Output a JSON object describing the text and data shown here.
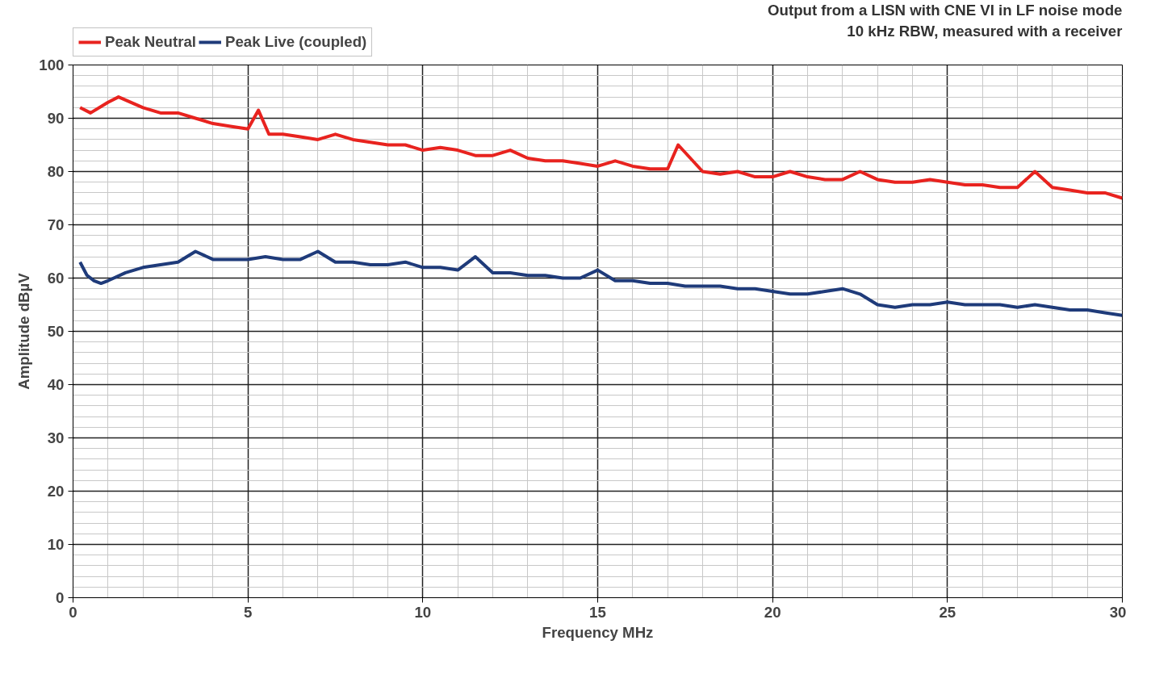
{
  "chart_data": {
    "type": "line",
    "title": "Output from a LISN with CNE VI in LF noise mode",
    "subtitle": "10 kHz RBW, measured with a receiver",
    "xlabel": "Frequency MHz",
    "ylabel": "Amplitude dBµV",
    "xlim": [
      0,
      30
    ],
    "ylim": [
      0,
      100
    ],
    "xticks": [
      0,
      5,
      10,
      15,
      20,
      25,
      30
    ],
    "yticks": [
      0,
      10,
      20,
      30,
      40,
      50,
      60,
      70,
      80,
      90,
      100
    ],
    "grid": true,
    "legend": "top left",
    "marker": "none",
    "line_style": "solid",
    "series": [
      {
        "name": "Peak Neutral",
        "color": "#e8231f",
        "x": [
          0.2,
          0.5,
          1,
          1.3,
          2,
          2.5,
          3,
          3.5,
          4,
          4.5,
          5,
          5.3,
          5.6,
          6,
          6.5,
          7,
          7.5,
          8,
          8.5,
          9,
          9.5,
          10,
          10.5,
          11,
          11.5,
          12,
          12.5,
          13,
          13.5,
          14,
          14.5,
          15,
          15.5,
          16,
          16.5,
          17,
          17.3,
          18,
          18.5,
          19,
          19.5,
          20,
          20.5,
          21,
          21.5,
          22,
          22.5,
          23,
          23.5,
          24,
          24.5,
          25,
          25.5,
          26,
          26.5,
          27,
          27.5,
          28,
          28.5,
          29,
          29.5,
          30
        ],
        "values": [
          92,
          91,
          93,
          94,
          92,
          91,
          91,
          90,
          89,
          88.5,
          88,
          91.5,
          87,
          87,
          86.5,
          86,
          87,
          86,
          85.5,
          85,
          85,
          84,
          84.5,
          84,
          83,
          83,
          84,
          82.5,
          82,
          82,
          81.5,
          81,
          82,
          81,
          80.5,
          80.5,
          85,
          80,
          79.5,
          80,
          79,
          79,
          80,
          79,
          78.5,
          78.5,
          80,
          78.5,
          78,
          78,
          78.5,
          78,
          77.5,
          77.5,
          77,
          77,
          80,
          77,
          76.5,
          76,
          76,
          75
        ]
      },
      {
        "name": "Peak Live (coupled)",
        "color": "#1f3b7a",
        "x": [
          0.2,
          0.4,
          0.6,
          0.8,
          1,
          1.5,
          2,
          2.5,
          3,
          3.5,
          4,
          4.5,
          5,
          5.5,
          6,
          6.5,
          7,
          7.5,
          8,
          8.5,
          9,
          9.5,
          10,
          10.5,
          11,
          11.5,
          12,
          12.5,
          13,
          13.5,
          14,
          14.5,
          15,
          15.5,
          16,
          16.5,
          17,
          17.5,
          18,
          18.5,
          19,
          19.5,
          20,
          20.5,
          21,
          21.5,
          22,
          22.5,
          23,
          23.5,
          24,
          24.5,
          25,
          25.5,
          26,
          26.5,
          27,
          27.5,
          28,
          28.5,
          29,
          29.5,
          30
        ],
        "values": [
          63,
          60.5,
          59.5,
          59,
          59.5,
          61,
          62,
          62.5,
          63,
          65,
          63.5,
          63.5,
          63.5,
          64,
          63.5,
          63.5,
          65,
          63,
          63,
          62.5,
          62.5,
          63,
          62,
          62,
          61.5,
          64,
          61,
          61,
          60.5,
          60.5,
          60,
          60,
          61.5,
          59.5,
          59.5,
          59,
          59,
          58.5,
          58.5,
          58.5,
          58,
          58,
          57.5,
          57,
          57,
          57.5,
          58,
          57,
          55,
          54.5,
          55,
          55,
          55.5,
          55,
          55,
          55,
          54.5,
          55,
          54.5,
          54,
          54,
          53.5,
          53
        ]
      }
    ]
  }
}
